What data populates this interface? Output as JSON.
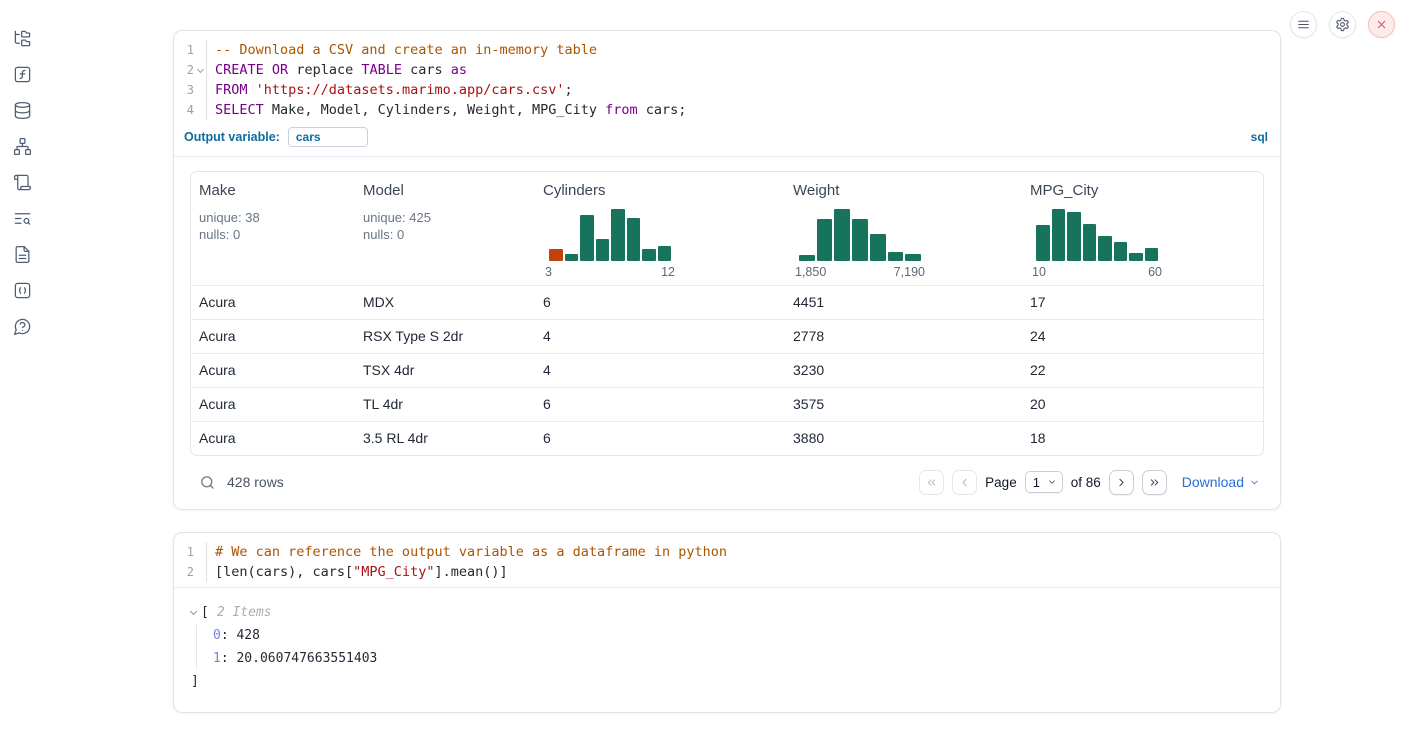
{
  "colors": {
    "keyword": "#770088",
    "string": "#aa1111",
    "comment": "#aa5500",
    "accent_blue": "#0d6c9e",
    "link_blue": "#2b6fd4",
    "hist_green": "#17735c",
    "hist_orange": "#c2410c",
    "tree_key": "#7d7fd6",
    "danger_red": "#e5484d"
  },
  "sidebar": {
    "icons": [
      "file-explorer",
      "functions",
      "data-sources",
      "dependency-graph",
      "scratchpad",
      "logs",
      "documentation",
      "snippets",
      "help"
    ]
  },
  "topbar": {
    "buttons": [
      "notebook-menu",
      "settings",
      "shutdown"
    ]
  },
  "sql_cell": {
    "lines": [
      {
        "n": "1",
        "fold": false,
        "tokens": [
          [
            "c",
            "-- Download a CSV and create an in-memory table"
          ]
        ]
      },
      {
        "n": "2",
        "fold": true,
        "tokens": [
          [
            "k",
            "CREATE"
          ],
          [
            "p",
            " "
          ],
          [
            "k",
            "OR"
          ],
          [
            "p",
            " replace "
          ],
          [
            "k",
            "TABLE"
          ],
          [
            "p",
            " cars "
          ],
          [
            "k",
            "as"
          ]
        ]
      },
      {
        "n": "3",
        "fold": false,
        "tokens": [
          [
            "k",
            "FROM"
          ],
          [
            "p",
            " "
          ],
          [
            "s",
            "'https://datasets.marimo.app/cars.csv'"
          ],
          [
            "p",
            ";"
          ]
        ]
      },
      {
        "n": "4",
        "fold": false,
        "tokens": [
          [
            "k",
            "SELECT"
          ],
          [
            "p",
            " Make, Model, Cylinders, Weight, MPG_City "
          ],
          [
            "k",
            "from"
          ],
          [
            "p",
            " cars;"
          ]
        ]
      }
    ],
    "output_variable_label": "Output variable:",
    "output_variable_value": "cars",
    "language_badge": "sql"
  },
  "table": {
    "columns": [
      {
        "name": "Make",
        "stats": [
          "unique: 38",
          "nulls: 0"
        ]
      },
      {
        "name": "Model",
        "stats": [
          "unique: 425",
          "nulls: 0"
        ]
      },
      {
        "name": "Cylinders",
        "histogram": {
          "type": "bar",
          "values": [
            12,
            7,
            46,
            22,
            52,
            43,
            12,
            15
          ],
          "bar_colors": [
            "#c2410c",
            "#17735c",
            "#17735c",
            "#17735c",
            "#17735c",
            "#17735c",
            "#17735c",
            "#17735c"
          ],
          "x_min_label": "3",
          "x_max_label": "12"
        }
      },
      {
        "name": "Weight",
        "histogram": {
          "type": "bar",
          "values": [
            6,
            42,
            52,
            42,
            27,
            9,
            7
          ],
          "x_min_label": "1,850",
          "x_max_label": "7,190"
        }
      },
      {
        "name": "MPG_City",
        "histogram": {
          "type": "bar",
          "values": [
            36,
            52,
            49,
            37,
            25,
            19,
            8,
            13
          ],
          "x_min_label": "10",
          "x_max_label": "60"
        }
      }
    ],
    "rows": [
      [
        "Acura",
        "MDX",
        "6",
        "4451",
        "17"
      ],
      [
        "Acura",
        "RSX Type S 2dr",
        "4",
        "2778",
        "24"
      ],
      [
        "Acura",
        "TSX 4dr",
        "4",
        "3230",
        "22"
      ],
      [
        "Acura",
        "TL 4dr",
        "6",
        "3575",
        "20"
      ],
      [
        "Acura",
        "3.5 RL 4dr",
        "6",
        "3880",
        "18"
      ]
    ],
    "footer": {
      "row_count": "428 rows",
      "page_label": "Page",
      "page_value": "1",
      "total_label": "of 86",
      "download_label": "Download"
    }
  },
  "python_cell": {
    "lines": [
      {
        "n": "1",
        "fold": false,
        "tokens": [
          [
            "c",
            "# We can reference the output variable as a dataframe in python"
          ]
        ]
      },
      {
        "n": "2",
        "fold": false,
        "tokens": [
          [
            "p",
            "[len(cars), cars["
          ],
          [
            "s",
            "\"MPG_City\""
          ],
          [
            "p",
            "].mean()]"
          ]
        ]
      }
    ]
  },
  "output_tree": {
    "open_bracket": "[",
    "items_label": "2 Items",
    "entries": [
      {
        "key": "0",
        "value": "428"
      },
      {
        "key": "1",
        "value": "20.060747663551403"
      }
    ],
    "close_bracket": "]"
  }
}
